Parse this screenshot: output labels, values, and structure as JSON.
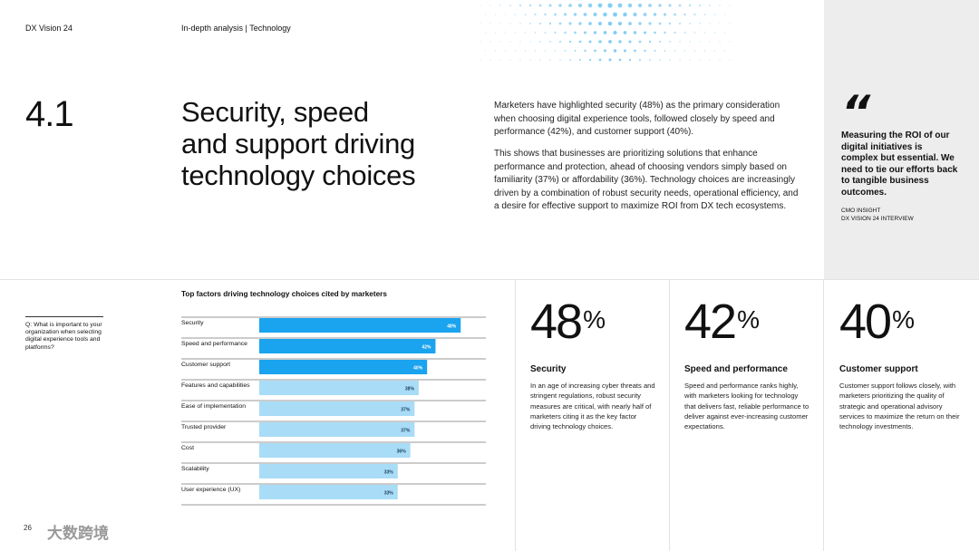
{
  "header": {
    "report_name": "DX Vision 24",
    "section_path": "In-depth analysis | Technology"
  },
  "section": {
    "number": "4.1",
    "headline_lines": [
      "Security, speed",
      "and support driving",
      "technology choices"
    ],
    "paragraph_1": "Marketers have highlighted security (48%) as the primary consideration when choosing digital experience tools, followed closely by speed and performance (42%), and customer support (40%).",
    "paragraph_2": "This shows that businesses are prioritizing solutions that enhance performance and protection, ahead of choosing vendors simply based on familiarity (37%) or affordability (36%). Technology choices are increasingly driven by a combination of robust security needs, operational efficiency, and a desire for effective support to maximize ROI from DX tech ecosystems."
  },
  "quote": {
    "mark": "“",
    "text": "Measuring the ROI of our digital initiatives is complex but essential. We need to tie our efforts back to tangible business outcomes.",
    "source_line_1": "CMO INSIGHT",
    "source_line_2": "DX VISION 24 INTERVIEW"
  },
  "question": "Q: What is important to your organization when selecting digital experience tools and platforms?",
  "chart_data": {
    "type": "bar",
    "orientation": "horizontal",
    "title": "Top factors driving technology choices cited by marketers",
    "categories": [
      "Security",
      "Speed and performance",
      "Customer support",
      "Features and capabilities",
      "Ease of implementation",
      "Trusted provider",
      "Cost",
      "Scalability",
      "User experience (UX)"
    ],
    "values": [
      48,
      42,
      40,
      38,
      37,
      37,
      36,
      33,
      33
    ],
    "labels": [
      "48%",
      "42%",
      "40%",
      "38%",
      "37%",
      "37%",
      "36%",
      "33%",
      "33%"
    ],
    "highlight_count": 3,
    "xlim": [
      0,
      54
    ],
    "colors": {
      "highlight": "#1aa3ee",
      "normal": "#a9dcf6"
    }
  },
  "stats": [
    {
      "value": "48",
      "unit": "%",
      "title": "Security",
      "desc": "In an age of increasing cyber threats and stringent regulations, robust security measures are critical, with nearly half of marketers citing it as the key factor driving technology choices."
    },
    {
      "value": "42",
      "unit": "%",
      "title": "Speed and performance",
      "desc": "Speed and performance ranks highly, with marketers looking for technology that delivers fast, reliable performance to deliver against ever-increasing customer expectations."
    },
    {
      "value": "40",
      "unit": "%",
      "title": "Customer support",
      "desc": "Customer support follows closely, with marketers prioritizing the quality of strategic and operational advisory services to maximize the return on their technology investments."
    }
  ],
  "footer": {
    "page_number": "26",
    "watermark": "大数跨境"
  }
}
